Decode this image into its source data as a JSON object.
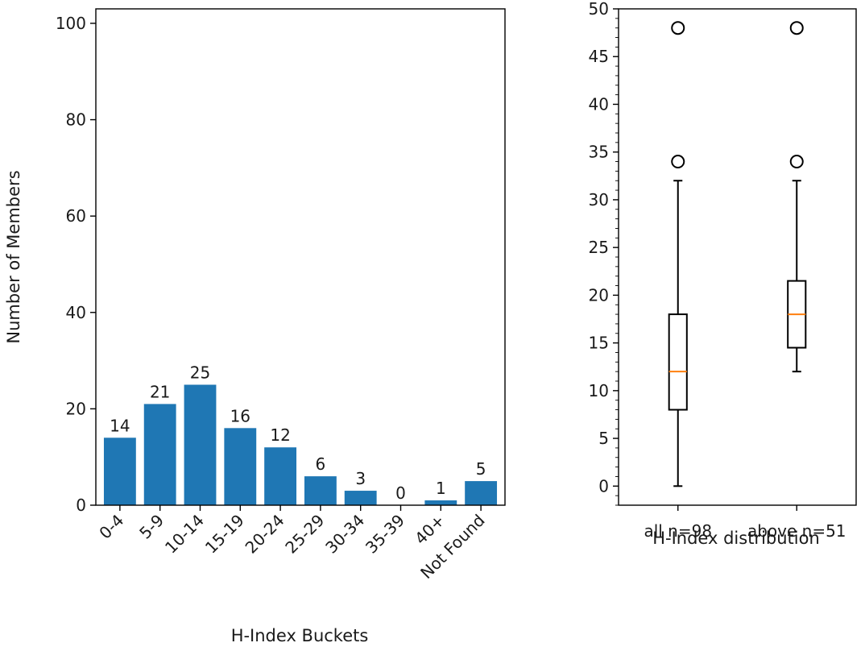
{
  "chart_data": [
    {
      "type": "bar",
      "categories": [
        "0-4",
        "5-9",
        "10-14",
        "15-19",
        "20-24",
        "25-29",
        "30-34",
        "35-39",
        "40+",
        "Not Found"
      ],
      "values": [
        14,
        21,
        25,
        16,
        12,
        6,
        3,
        0,
        1,
        5
      ],
      "data_labels": [
        "14",
        "21",
        "25",
        "16",
        "12",
        "6",
        "3",
        "0",
        "1",
        "5"
      ],
      "xlabel": "H-Index Buckets",
      "ylabel": "Number of Members",
      "ylim": [
        0,
        103
      ],
      "yticks": [
        0,
        20,
        40,
        60,
        80,
        100
      ],
      "grid": false,
      "bar_color": "#1f77b4"
    },
    {
      "type": "box",
      "categories": [
        "all n=98",
        "above n=51"
      ],
      "xlabel": "H-Index distribution",
      "ylim": [
        -2,
        50
      ],
      "yticks": [
        0,
        5,
        10,
        15,
        20,
        25,
        30,
        35,
        40,
        45,
        50
      ],
      "grid": false,
      "median_color": "#ff7f0e",
      "boxes": [
        {
          "whisker_low": 0,
          "q1": 8,
          "median": 12,
          "q3": 18,
          "whisker_high": 32,
          "fliers": [
            34,
            48
          ]
        },
        {
          "whisker_low": 12,
          "q1": 14.5,
          "median": 18,
          "q3": 21.5,
          "whisker_high": 32,
          "fliers": [
            34,
            48
          ]
        }
      ]
    }
  ]
}
